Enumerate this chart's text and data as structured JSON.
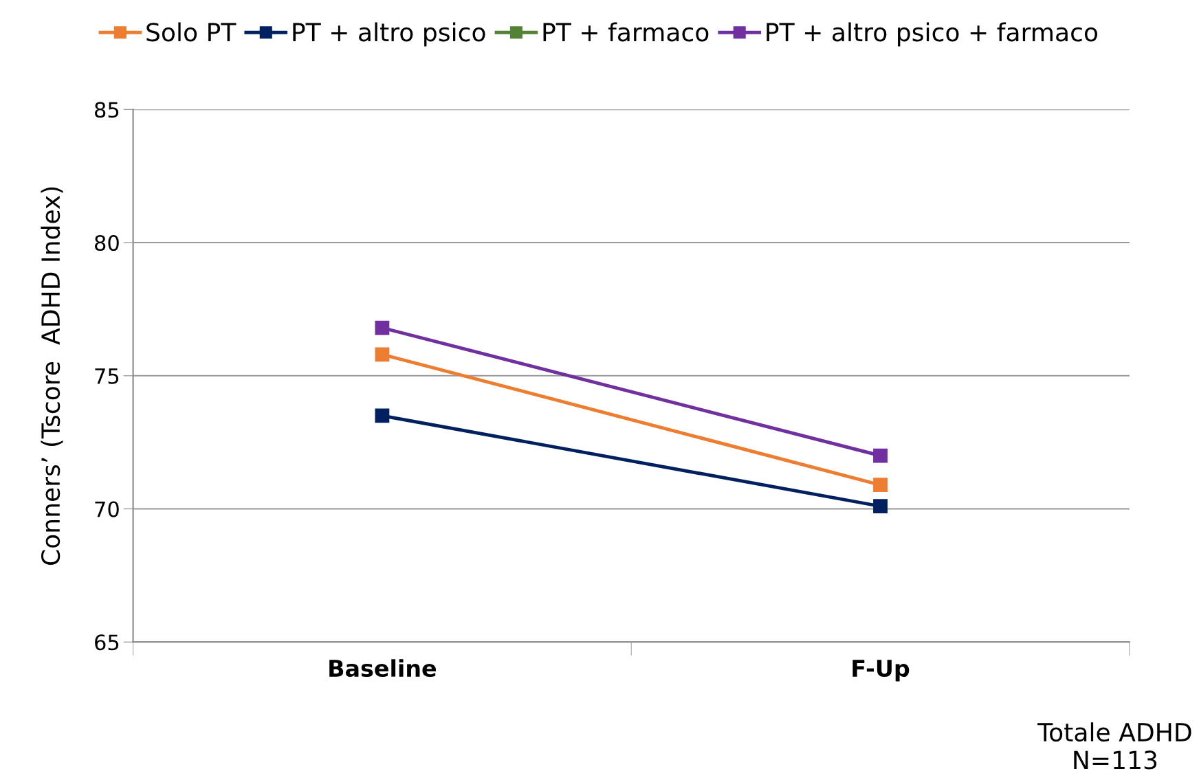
{
  "chart_data": {
    "type": "line",
    "ylabel": "Conners’ (Tscore  ADHD Index)",
    "categories": [
      "Baseline",
      "F-Up"
    ],
    "series": [
      {
        "name": "Solo PT",
        "color": "#ed7d31",
        "values": [
          75.8,
          70.9
        ]
      },
      {
        "name": "PT + altro psico",
        "color": "#002060",
        "values": [
          73.5,
          70.1
        ]
      },
      {
        "name": "PT + farmaco",
        "color": "#548235",
        "values": [
          null,
          null
        ]
      },
      {
        "name": "PT + altro psico + farmaco",
        "color": "#7030a0",
        "values": [
          76.8,
          72.0
        ]
      }
    ],
    "ylim": [
      65,
      85
    ],
    "yticks": [
      65,
      70,
      75,
      80,
      85
    ],
    "grid": "y",
    "legend": "top",
    "marker": "square",
    "line_style": "solid",
    "annotations": [
      "Totale ADHD\nN=113"
    ]
  }
}
